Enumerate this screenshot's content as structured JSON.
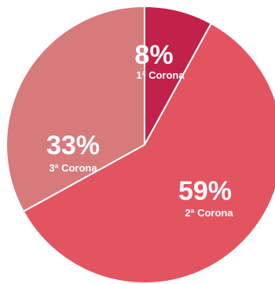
{
  "chart_data": {
    "type": "pie",
    "slices": [
      {
        "label": "1ª Corona",
        "value": 8,
        "percent_label": "8%",
        "color": "#C2224A"
      },
      {
        "label": "2ª Corona",
        "value": 59,
        "percent_label": "59%",
        "color": "#E35461"
      },
      {
        "label": "3ª Corona",
        "value": 33,
        "percent_label": "33%",
        "color": "#D77A7B"
      }
    ],
    "start_angle": "top",
    "direction": "clockwise",
    "separator_color": "#ffffff",
    "title": "",
    "legend": "none"
  }
}
